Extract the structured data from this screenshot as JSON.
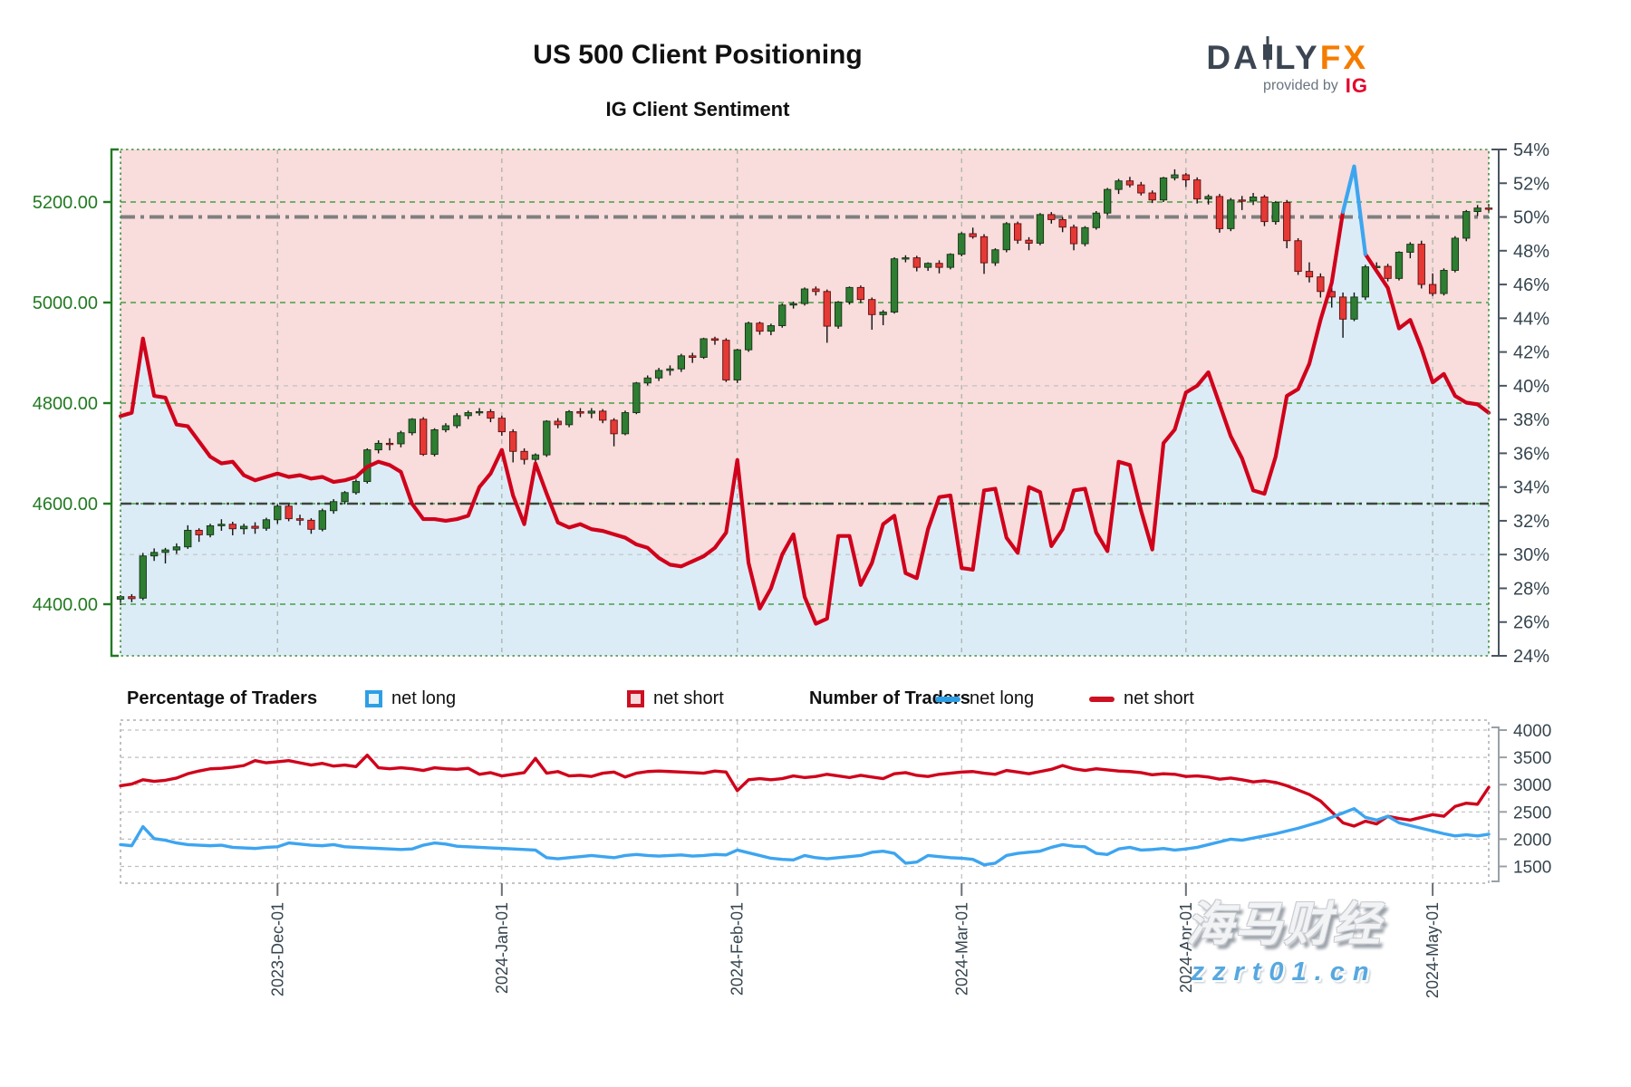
{
  "header": {
    "title": "US 500 Client Positioning",
    "subtitle": "IG Client Sentiment",
    "logo_brand_left": "DA",
    "logo_brand_right": "LY",
    "logo_brand_fx": "FX",
    "provided_by": "provided by",
    "provider": "IG"
  },
  "legend": {
    "pct_title": "Percentage of Traders",
    "num_title": "Number of Traders",
    "net_long_label": "net long",
    "net_short_label": "net short",
    "net_long_label2": "net long",
    "net_short_label2": "net short"
  },
  "watermark": {
    "line1": "海马财经",
    "line2": "zzrt01.cn"
  },
  "colors": {
    "net_short_line": "#d0021b",
    "net_long_line": "#3da5f0",
    "fill_above": "#f9dcdc",
    "fill_below": "#dcecf7",
    "candle_up": "#2e7d32",
    "candle_down": "#e53935",
    "price_axis": "#227a22",
    "pct_axis": "#36454f",
    "grid_green": "#44a044",
    "grid_gray": "#c2c2c2",
    "dashdot_fifty": "#7f7f7f",
    "logo_slate": "#3c4653",
    "logo_orange": "#f57c00",
    "ig_red": "#e4002b"
  },
  "chart_data": [
    {
      "type": "candlestick+line",
      "title": "IG Client Sentiment",
      "legend_position": "below",
      "grid": "on",
      "price_axis_labels": [
        "5200.00",
        "5000.00",
        "4800.00",
        "4600.00",
        "4400.00"
      ],
      "price_axis_values": [
        5200,
        5000,
        4800,
        4600,
        4400
      ],
      "pct_axis_labels": [
        "54%",
        "52%",
        "50%",
        "48%",
        "46%",
        "44%",
        "42%",
        "40%",
        "38%",
        "36%",
        "34%",
        "32%",
        "30%",
        "28%",
        "26%",
        "24%"
      ],
      "pct_axis_range": [
        24,
        54
      ],
      "pct_axis_step": 2,
      "x_tick_labels": [
        "2023-Dec-01",
        "2024-Jan-01",
        "2024-Feb-01",
        "2024-Mar-01",
        "2024-Apr-01",
        "2024-May-01"
      ],
      "x_tick_indices": [
        14,
        34,
        55,
        75,
        95,
        117
      ],
      "x_range_dates": [
        "2023-Nov-10",
        "2024-May-08"
      ],
      "reference_lines": {
        "dashdot_pct": 50,
        "dashdot_price": 4600,
        "faint_gray_pct": [
          40,
          30
        ]
      },
      "candles_ohlc": [
        [
          4410,
          4418,
          4398,
          4415
        ],
        [
          4415,
          4420,
          4404,
          4411
        ],
        [
          4412,
          4502,
          4408,
          4496
        ],
        [
          4496,
          4511,
          4486,
          4503
        ],
        [
          4503,
          4512,
          4481,
          4508
        ],
        [
          4508,
          4521,
          4500,
          4514
        ],
        [
          4514,
          4557,
          4510,
          4547
        ],
        [
          4547,
          4551,
          4524,
          4538
        ],
        [
          4538,
          4560,
          4533,
          4556
        ],
        [
          4556,
          4569,
          4546,
          4559
        ],
        [
          4559,
          4564,
          4537,
          4550
        ],
        [
          4550,
          4560,
          4539,
          4555
        ],
        [
          4555,
          4563,
          4540,
          4551
        ],
        [
          4551,
          4572,
          4546,
          4568
        ],
        [
          4568,
          4599,
          4560,
          4595
        ],
        [
          4595,
          4599,
          4565,
          4570
        ],
        [
          4570,
          4578,
          4557,
          4567
        ],
        [
          4567,
          4571,
          4540,
          4549
        ],
        [
          4549,
          4590,
          4545,
          4586
        ],
        [
          4586,
          4609,
          4580,
          4604
        ],
        [
          4604,
          4625,
          4599,
          4622
        ],
        [
          4622,
          4648,
          4618,
          4644
        ],
        [
          4644,
          4710,
          4640,
          4707
        ],
        [
          4707,
          4726,
          4700,
          4720
        ],
        [
          4720,
          4730,
          4706,
          4719
        ],
        [
          4719,
          4745,
          4712,
          4741
        ],
        [
          4741,
          4770,
          4736,
          4768
        ],
        [
          4768,
          4772,
          4695,
          4698
        ],
        [
          4698,
          4750,
          4694,
          4747
        ],
        [
          4747,
          4760,
          4742,
          4755
        ],
        [
          4755,
          4780,
          4750,
          4775
        ],
        [
          4775,
          4785,
          4768,
          4781
        ],
        [
          4781,
          4790,
          4775,
          4783
        ],
        [
          4783,
          4788,
          4762,
          4770
        ],
        [
          4770,
          4775,
          4735,
          4743
        ],
        [
          4743,
          4748,
          4682,
          4704
        ],
        [
          4704,
          4710,
          4678,
          4688
        ],
        [
          4688,
          4700,
          4675,
          4697
        ],
        [
          4697,
          4766,
          4693,
          4764
        ],
        [
          4764,
          4770,
          4750,
          4757
        ],
        [
          4757,
          4786,
          4752,
          4783
        ],
        [
          4783,
          4790,
          4772,
          4780
        ],
        [
          4780,
          4790,
          4770,
          4784
        ],
        [
          4784,
          4788,
          4760,
          4766
        ],
        [
          4766,
          4770,
          4714,
          4739
        ],
        [
          4739,
          4785,
          4736,
          4781
        ],
        [
          4781,
          4842,
          4778,
          4840
        ],
        [
          4840,
          4855,
          4835,
          4850
        ],
        [
          4850,
          4870,
          4844,
          4865
        ],
        [
          4865,
          4875,
          4855,
          4868
        ],
        [
          4868,
          4898,
          4862,
          4894
        ],
        [
          4894,
          4900,
          4880,
          4891
        ],
        [
          4891,
          4930,
          4888,
          4928
        ],
        [
          4928,
          4932,
          4916,
          4925
        ],
        [
          4925,
          4929,
          4842,
          4846
        ],
        [
          4846,
          4908,
          4840,
          4906
        ],
        [
          4906,
          4962,
          4902,
          4959
        ],
        [
          4959,
          4962,
          4936,
          4943
        ],
        [
          4943,
          4958,
          4935,
          4954
        ],
        [
          4954,
          4998,
          4950,
          4995
        ],
        [
          4995,
          5002,
          4988,
          4998
        ],
        [
          4998,
          5030,
          4994,
          5027
        ],
        [
          5027,
          5032,
          5014,
          5022
        ],
        [
          5022,
          5026,
          4920,
          4953
        ],
        [
          4953,
          5003,
          4948,
          5001
        ],
        [
          5001,
          5032,
          4996,
          5030
        ],
        [
          5030,
          5034,
          4999,
          5006
        ],
        [
          5006,
          5010,
          4946,
          4976
        ],
        [
          4976,
          4985,
          4955,
          4981
        ],
        [
          4981,
          5090,
          4978,
          5087
        ],
        [
          5087,
          5094,
          5080,
          5089
        ],
        [
          5089,
          5093,
          5062,
          5070
        ],
        [
          5070,
          5080,
          5063,
          5078
        ],
        [
          5078,
          5084,
          5058,
          5070
        ],
        [
          5070,
          5098,
          5066,
          5096
        ],
        [
          5096,
          5140,
          5092,
          5137
        ],
        [
          5137,
          5149,
          5127,
          5131
        ],
        [
          5131,
          5136,
          5057,
          5079
        ],
        [
          5079,
          5108,
          5073,
          5105
        ],
        [
          5105,
          5160,
          5100,
          5157
        ],
        [
          5157,
          5161,
          5117,
          5124
        ],
        [
          5124,
          5130,
          5104,
          5118
        ],
        [
          5118,
          5178,
          5114,
          5175
        ],
        [
          5175,
          5180,
          5157,
          5165
        ],
        [
          5165,
          5170,
          5140,
          5150
        ],
        [
          5150,
          5155,
          5104,
          5117
        ],
        [
          5117,
          5152,
          5112,
          5149
        ],
        [
          5149,
          5182,
          5145,
          5178
        ],
        [
          5178,
          5228,
          5174,
          5225
        ],
        [
          5225,
          5246,
          5216,
          5242
        ],
        [
          5242,
          5250,
          5229,
          5234
        ],
        [
          5234,
          5240,
          5213,
          5218
        ],
        [
          5218,
          5223,
          5198,
          5204
        ],
        [
          5204,
          5250,
          5200,
          5248
        ],
        [
          5248,
          5265,
          5243,
          5254
        ],
        [
          5254,
          5258,
          5230,
          5244
        ],
        [
          5244,
          5249,
          5197,
          5206
        ],
        [
          5206,
          5215,
          5195,
          5211
        ],
        [
          5211,
          5216,
          5139,
          5147
        ],
        [
          5147,
          5208,
          5142,
          5204
        ],
        [
          5204,
          5212,
          5184,
          5202
        ],
        [
          5202,
          5218,
          5194,
          5210
        ],
        [
          5210,
          5214,
          5152,
          5161
        ],
        [
          5161,
          5202,
          5155,
          5199
        ],
        [
          5199,
          5204,
          5108,
          5123
        ],
        [
          5123,
          5128,
          5055,
          5062
        ],
        [
          5062,
          5080,
          5040,
          5051
        ],
        [
          5051,
          5058,
          5010,
          5022
        ],
        [
          5022,
          5030,
          4990,
          5011
        ],
        [
          5011,
          5020,
          4930,
          4967
        ],
        [
          4967,
          5020,
          4963,
          5011
        ],
        [
          5011,
          5075,
          5005,
          5071
        ],
        [
          5071,
          5080,
          5060,
          5072
        ],
        [
          5072,
          5077,
          5042,
          5048
        ],
        [
          5048,
          5102,
          5044,
          5100
        ],
        [
          5100,
          5120,
          5088,
          5116
        ],
        [
          5116,
          5123,
          5028,
          5036
        ],
        [
          5036,
          5058,
          5013,
          5018
        ],
        [
          5018,
          5068,
          5014,
          5064
        ],
        [
          5064,
          5132,
          5060,
          5128
        ],
        [
          5128,
          5184,
          5122,
          5181
        ],
        [
          5181,
          5194,
          5172,
          5188
        ],
        [
          5188,
          5196,
          5178,
          5187
        ]
      ],
      "net_short_pct": [
        38.2,
        38.4,
        42.8,
        39.4,
        39.3,
        37.7,
        37.6,
        36.7,
        35.8,
        35.4,
        35.5,
        34.7,
        34.4,
        34.6,
        34.8,
        34.6,
        34.7,
        34.5,
        34.6,
        34.3,
        34.4,
        34.6,
        35.2,
        35.5,
        35.3,
        34.9,
        33.0,
        32.1,
        32.1,
        32.0,
        32.1,
        32.3,
        34.0,
        34.8,
        36.2,
        33.5,
        31.8,
        35.4,
        33.6,
        31.9,
        31.6,
        31.8,
        31.5,
        31.4,
        31.2,
        31.0,
        30.6,
        30.4,
        29.8,
        29.4,
        29.3,
        29.6,
        29.9,
        30.4,
        31.3,
        35.6,
        29.5,
        26.8,
        28.0,
        30.0,
        31.2,
        27.5,
        25.9,
        26.2,
        31.1,
        31.1,
        28.2,
        29.5,
        31.8,
        32.3,
        28.9,
        28.6,
        31.5,
        33.4,
        33.5,
        29.2,
        29.1,
        33.8,
        33.9,
        31.0,
        30.1,
        34.0,
        33.7,
        30.5,
        31.5,
        33.8,
        33.9,
        31.3,
        30.2,
        35.5,
        35.3,
        32.6,
        30.3,
        36.6,
        37.4,
        39.6,
        40.0,
        40.8,
        38.9,
        37.0,
        35.7,
        33.8,
        33.6,
        35.8,
        39.4,
        39.8,
        41.3,
        43.9,
        46.1,
        50.3,
        null,
        47.8,
        46.8,
        45.8,
        43.4,
        43.9,
        42.2,
        40.2,
        40.7,
        39.4,
        39.0,
        38.9,
        38.4
      ],
      "net_long_pct_segment": {
        "start_index": 109,
        "values": [
          50.3,
          53.0,
          47.8
        ]
      }
    },
    {
      "type": "line",
      "series_names": [
        "net long",
        "net short"
      ],
      "count_axis_labels": [
        "4000",
        "3500",
        "3000",
        "2500",
        "2000",
        "1500"
      ],
      "count_axis_values": [
        4000,
        3500,
        3000,
        2500,
        2000,
        1500
      ],
      "net_short_count": [
        2980,
        3010,
        3090,
        3060,
        3080,
        3120,
        3200,
        3250,
        3290,
        3300,
        3320,
        3350,
        3440,
        3400,
        3420,
        3440,
        3400,
        3360,
        3390,
        3340,
        3360,
        3330,
        3540,
        3310,
        3290,
        3310,
        3290,
        3260,
        3310,
        3290,
        3280,
        3300,
        3190,
        3220,
        3160,
        3190,
        3220,
        3480,
        3210,
        3240,
        3160,
        3170,
        3150,
        3210,
        3230,
        3140,
        3210,
        3240,
        3250,
        3240,
        3230,
        3220,
        3210,
        3250,
        3230,
        2890,
        3090,
        3110,
        3090,
        3110,
        3160,
        3130,
        3150,
        3190,
        3160,
        3130,
        3170,
        3140,
        3110,
        3200,
        3220,
        3170,
        3150,
        3190,
        3210,
        3230,
        3240,
        3210,
        3190,
        3260,
        3230,
        3200,
        3240,
        3280,
        3350,
        3290,
        3260,
        3290,
        3270,
        3250,
        3240,
        3220,
        3180,
        3200,
        3190,
        3150,
        3160,
        3140,
        3100,
        3120,
        3090,
        3050,
        3070,
        3040,
        2980,
        2900,
        2820,
        2700,
        2500,
        2300,
        2240,
        2330,
        2280,
        2420,
        2380,
        2350,
        2400,
        2450,
        2420,
        2600,
        2660,
        2640,
        2950
      ],
      "net_long_count": [
        1900,
        1880,
        2230,
        2010,
        1980,
        1930,
        1900,
        1890,
        1880,
        1890,
        1850,
        1840,
        1830,
        1850,
        1860,
        1930,
        1910,
        1890,
        1880,
        1900,
        1860,
        1850,
        1840,
        1830,
        1820,
        1810,
        1820,
        1890,
        1930,
        1910,
        1870,
        1860,
        1850,
        1840,
        1830,
        1820,
        1810,
        1800,
        1660,
        1640,
        1660,
        1680,
        1700,
        1680,
        1660,
        1700,
        1720,
        1700,
        1690,
        1700,
        1710,
        1690,
        1700,
        1720,
        1710,
        1800,
        1750,
        1700,
        1650,
        1630,
        1620,
        1700,
        1660,
        1640,
        1660,
        1680,
        1700,
        1760,
        1780,
        1740,
        1560,
        1580,
        1700,
        1680,
        1660,
        1650,
        1630,
        1530,
        1560,
        1700,
        1740,
        1760,
        1780,
        1850,
        1900,
        1870,
        1860,
        1740,
        1720,
        1820,
        1850,
        1800,
        1810,
        1830,
        1800,
        1820,
        1850,
        1900,
        1950,
        2000,
        1980,
        2020,
        2060,
        2100,
        2150,
        2200,
        2260,
        2320,
        2400,
        2480,
        2560,
        2400,
        2350,
        2420,
        2300,
        2250,
        2200,
        2150,
        2100,
        2060,
        2080,
        2060,
        2090
      ]
    }
  ]
}
